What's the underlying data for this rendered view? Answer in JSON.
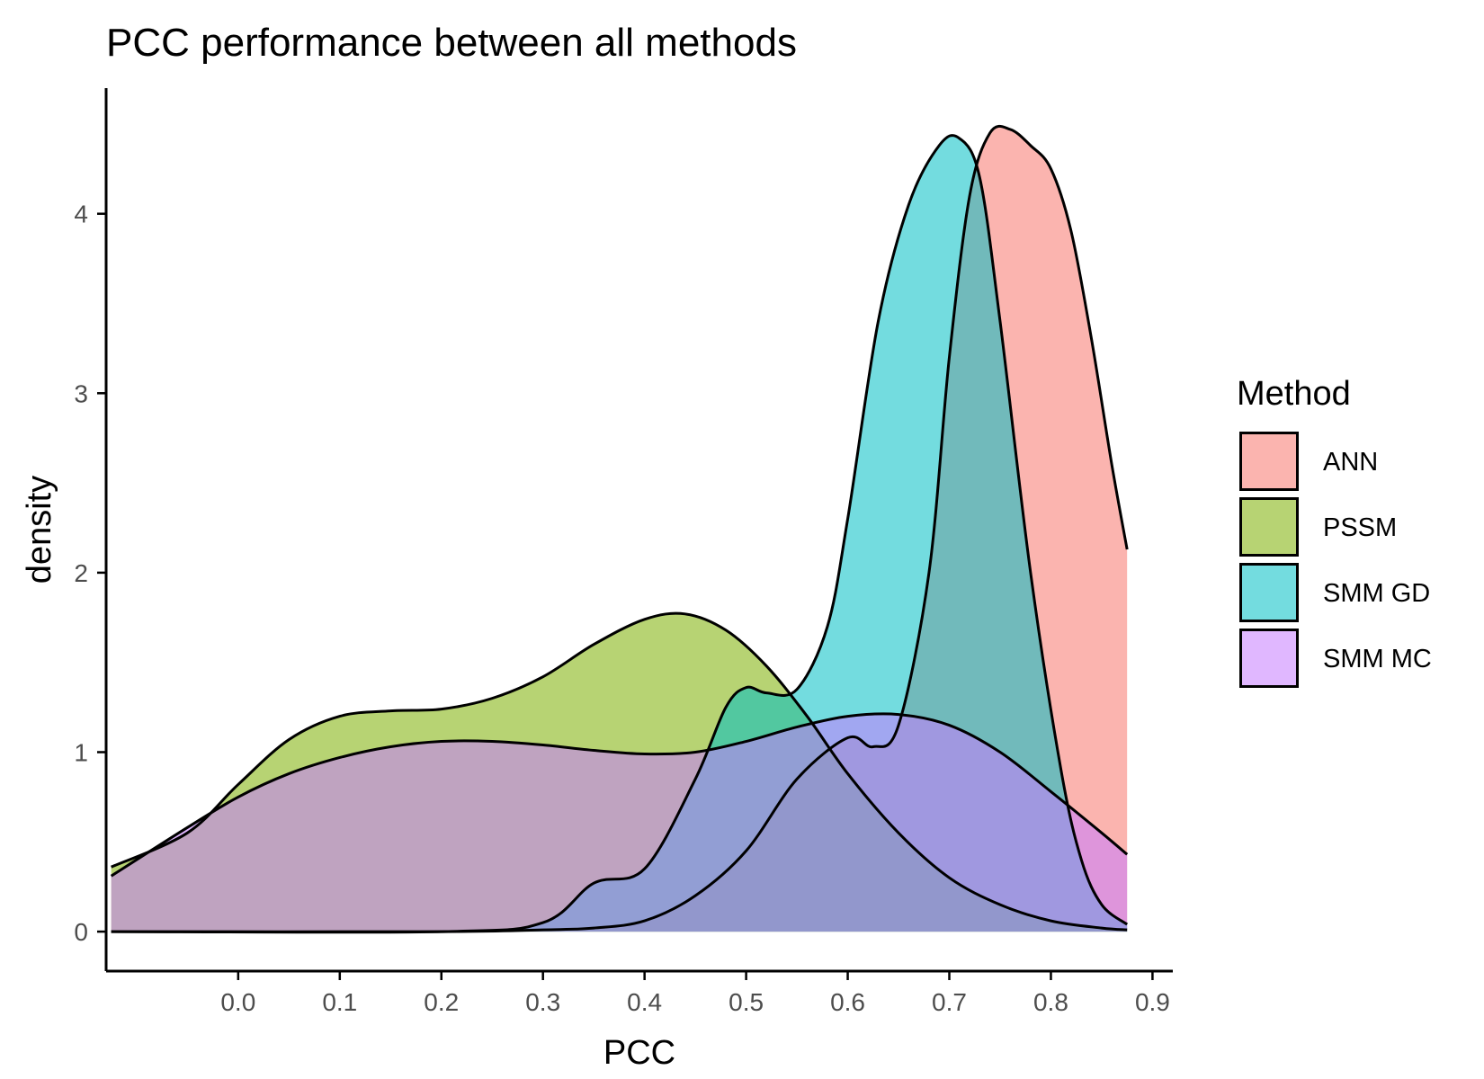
{
  "chart_data": {
    "type": "area",
    "title": "PCC performance between all methods",
    "xlabel": "PCC",
    "ylabel": "density",
    "xlim": [
      -0.13,
      0.92
    ],
    "ylim": [
      -0.22,
      4.7
    ],
    "x_ticks": [
      0.0,
      0.1,
      0.2,
      0.3,
      0.4,
      0.5,
      0.6,
      0.7,
      0.8,
      0.9
    ],
    "x_tick_labels": [
      "0.0",
      "0.1",
      "0.2",
      "0.3",
      "0.4",
      "0.5",
      "0.6",
      "0.7",
      "0.8",
      "0.9"
    ],
    "y_ticks": [
      0,
      1,
      2,
      3,
      4
    ],
    "y_tick_labels": [
      "0",
      "1",
      "2",
      "3",
      "4"
    ],
    "grid": false,
    "legend": {
      "title": "Method",
      "position": "right"
    },
    "series": [
      {
        "name": "ANN",
        "color": "#F8766D",
        "x": [
          -0.125,
          0.2,
          0.3,
          0.35,
          0.4,
          0.45,
          0.5,
          0.55,
          0.6,
          0.625,
          0.65,
          0.68,
          0.7,
          0.72,
          0.74,
          0.76,
          0.78,
          0.8,
          0.82,
          0.84,
          0.86,
          0.875
        ],
        "y": [
          0,
          0,
          0.01,
          0.02,
          0.06,
          0.2,
          0.45,
          0.85,
          1.08,
          1.03,
          1.15,
          2.0,
          3.2,
          4.1,
          4.45,
          4.47,
          4.38,
          4.25,
          3.9,
          3.3,
          2.6,
          2.13
        ]
      },
      {
        "name": "PSSM",
        "color": "#7CAE00",
        "x": [
          -0.125,
          -0.05,
          0.0,
          0.05,
          0.1,
          0.15,
          0.2,
          0.25,
          0.3,
          0.35,
          0.4,
          0.44,
          0.48,
          0.52,
          0.56,
          0.6,
          0.65,
          0.7,
          0.75,
          0.8,
          0.85,
          0.875
        ],
        "y": [
          0.36,
          0.55,
          0.82,
          1.07,
          1.2,
          1.23,
          1.24,
          1.3,
          1.42,
          1.6,
          1.74,
          1.77,
          1.68,
          1.48,
          1.2,
          0.88,
          0.55,
          0.3,
          0.15,
          0.06,
          0.02,
          0.01
        ]
      },
      {
        "name": "SMM GD",
        "color": "#00BFC4",
        "x": [
          -0.125,
          0.2,
          0.3,
          0.35,
          0.4,
          0.45,
          0.48,
          0.5,
          0.52,
          0.55,
          0.58,
          0.6,
          0.63,
          0.66,
          0.69,
          0.71,
          0.73,
          0.75,
          0.78,
          0.81,
          0.83,
          0.85,
          0.875
        ],
        "y": [
          0,
          0,
          0.05,
          0.27,
          0.35,
          0.85,
          1.25,
          1.36,
          1.33,
          1.35,
          1.7,
          2.3,
          3.4,
          4.05,
          4.38,
          4.42,
          4.2,
          3.4,
          2.0,
          0.9,
          0.4,
          0.15,
          0.04
        ]
      },
      {
        "name": "SMM MC",
        "color": "#C77CFF",
        "x": [
          -0.125,
          -0.05,
          0.0,
          0.05,
          0.1,
          0.15,
          0.2,
          0.25,
          0.3,
          0.35,
          0.4,
          0.45,
          0.5,
          0.55,
          0.6,
          0.65,
          0.7,
          0.75,
          0.8,
          0.85,
          0.875
        ],
        "y": [
          0.31,
          0.58,
          0.75,
          0.88,
          0.97,
          1.03,
          1.06,
          1.06,
          1.04,
          1.01,
          0.99,
          1.0,
          1.06,
          1.14,
          1.2,
          1.21,
          1.15,
          1.0,
          0.78,
          0.55,
          0.43
        ]
      }
    ]
  }
}
